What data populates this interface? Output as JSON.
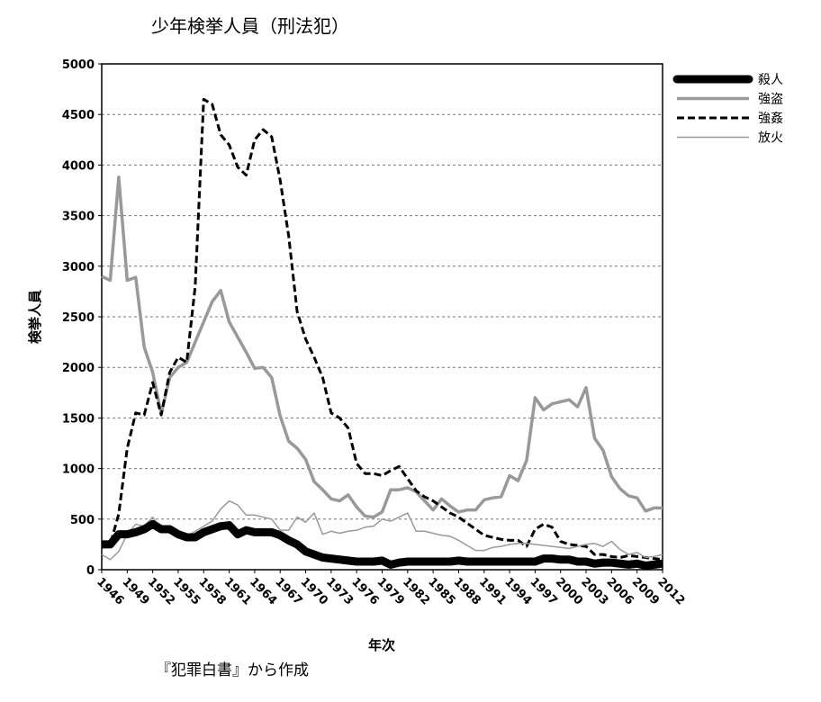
{
  "chart_data": {
    "type": "line",
    "title": "少年検挙人員（刑法犯）",
    "ylabel": "検挙人員",
    "xlabel": "年次",
    "note": "『犯罪白書』から作成",
    "x": [
      1946,
      1947,
      1948,
      1949,
      1950,
      1951,
      1952,
      1953,
      1954,
      1955,
      1956,
      1957,
      1958,
      1959,
      1960,
      1961,
      1962,
      1963,
      1964,
      1965,
      1966,
      1967,
      1968,
      1969,
      1970,
      1971,
      1972,
      1973,
      1974,
      1975,
      1976,
      1977,
      1978,
      1979,
      1980,
      1981,
      1982,
      1983,
      1984,
      1985,
      1986,
      1987,
      1988,
      1989,
      1990,
      1991,
      1992,
      1993,
      1994,
      1995,
      1996,
      1997,
      1998,
      1999,
      2000,
      2001,
      2002,
      2003,
      2004,
      2005,
      2006,
      2007,
      2008,
      2009,
      2010,
      2011,
      2012
    ],
    "xlim": [
      1946,
      2012
    ],
    "xticks": [
      1946,
      1949,
      1952,
      1955,
      1958,
      1961,
      1964,
      1967,
      1970,
      1973,
      1976,
      1979,
      1982,
      1985,
      1988,
      1991,
      1994,
      1997,
      2000,
      2003,
      2006,
      2009,
      2012
    ],
    "ylim": [
      0,
      5000
    ],
    "yticks": [
      0,
      500,
      1000,
      1500,
      2000,
      2500,
      3000,
      3500,
      4000,
      4500,
      5000
    ],
    "grid": true,
    "legend": "right",
    "series": [
      {
        "name": "殺人",
        "color": "#000000",
        "width": 9,
        "dash": false,
        "values": [
          250,
          250,
          350,
          350,
          370,
          400,
          450,
          400,
          400,
          350,
          320,
          320,
          370,
          400,
          430,
          440,
          350,
          390,
          370,
          370,
          370,
          340,
          290,
          250,
          180,
          150,
          120,
          110,
          100,
          90,
          80,
          80,
          80,
          90,
          50,
          70,
          80,
          80,
          80,
          80,
          80,
          80,
          90,
          80,
          80,
          80,
          80,
          80,
          80,
          80,
          80,
          80,
          110,
          110,
          100,
          100,
          80,
          80,
          60,
          70,
          70,
          60,
          50,
          60,
          40,
          50,
          60
        ]
      },
      {
        "name": "強盗",
        "color": "#999999",
        "width": 3.5,
        "dash": false,
        "values": [
          2900,
          2860,
          3880,
          2860,
          2890,
          2200,
          1950,
          1540,
          1900,
          2000,
          2050,
          2250,
          2450,
          2650,
          2760,
          2450,
          2300,
          2150,
          1990,
          2000,
          1900,
          1520,
          1270,
          1200,
          1090,
          870,
          790,
          700,
          680,
          740,
          620,
          530,
          520,
          570,
          790,
          790,
          810,
          770,
          680,
          590,
          700,
          630,
          570,
          590,
          590,
          690,
          710,
          720,
          930,
          880,
          1080,
          1700,
          1580,
          1640,
          1660,
          1680,
          1610,
          1800,
          1300,
          1180,
          920,
          800,
          730,
          710,
          580,
          610,
          610
        ]
      },
      {
        "name": "強姦",
        "color": "#000000",
        "width": 3,
        "dash": true,
        "values": [
          250,
          250,
          550,
          1200,
          1550,
          1530,
          1850,
          1530,
          1950,
          2100,
          2050,
          2800,
          4650,
          4600,
          4300,
          4200,
          3980,
          3900,
          4250,
          4350,
          4280,
          3850,
          3300,
          2550,
          2280,
          2100,
          1900,
          1550,
          1500,
          1400,
          1050,
          950,
          950,
          930,
          980,
          1020,
          900,
          780,
          720,
          680,
          620,
          560,
          520,
          460,
          400,
          340,
          320,
          300,
          290,
          290,
          230,
          400,
          450,
          420,
          280,
          250,
          240,
          230,
          150,
          150,
          130,
          120,
          140,
          130,
          120,
          110,
          100
        ]
      },
      {
        "name": "放火",
        "color": "#999999",
        "width": 1.5,
        "dash": false,
        "values": [
          150,
          100,
          180,
          350,
          450,
          430,
          520,
          400,
          420,
          380,
          330,
          380,
          430,
          480,
          600,
          680,
          640,
          540,
          540,
          520,
          500,
          390,
          390,
          520,
          470,
          560,
          350,
          380,
          360,
          380,
          390,
          420,
          430,
          500,
          480,
          520,
          560,
          380,
          380,
          360,
          340,
          330,
          290,
          240,
          190,
          190,
          220,
          230,
          250,
          260,
          260,
          250,
          240,
          230,
          220,
          210,
          230,
          250,
          260,
          230,
          280,
          200,
          150,
          170,
          120,
          130,
          150
        ]
      }
    ]
  }
}
